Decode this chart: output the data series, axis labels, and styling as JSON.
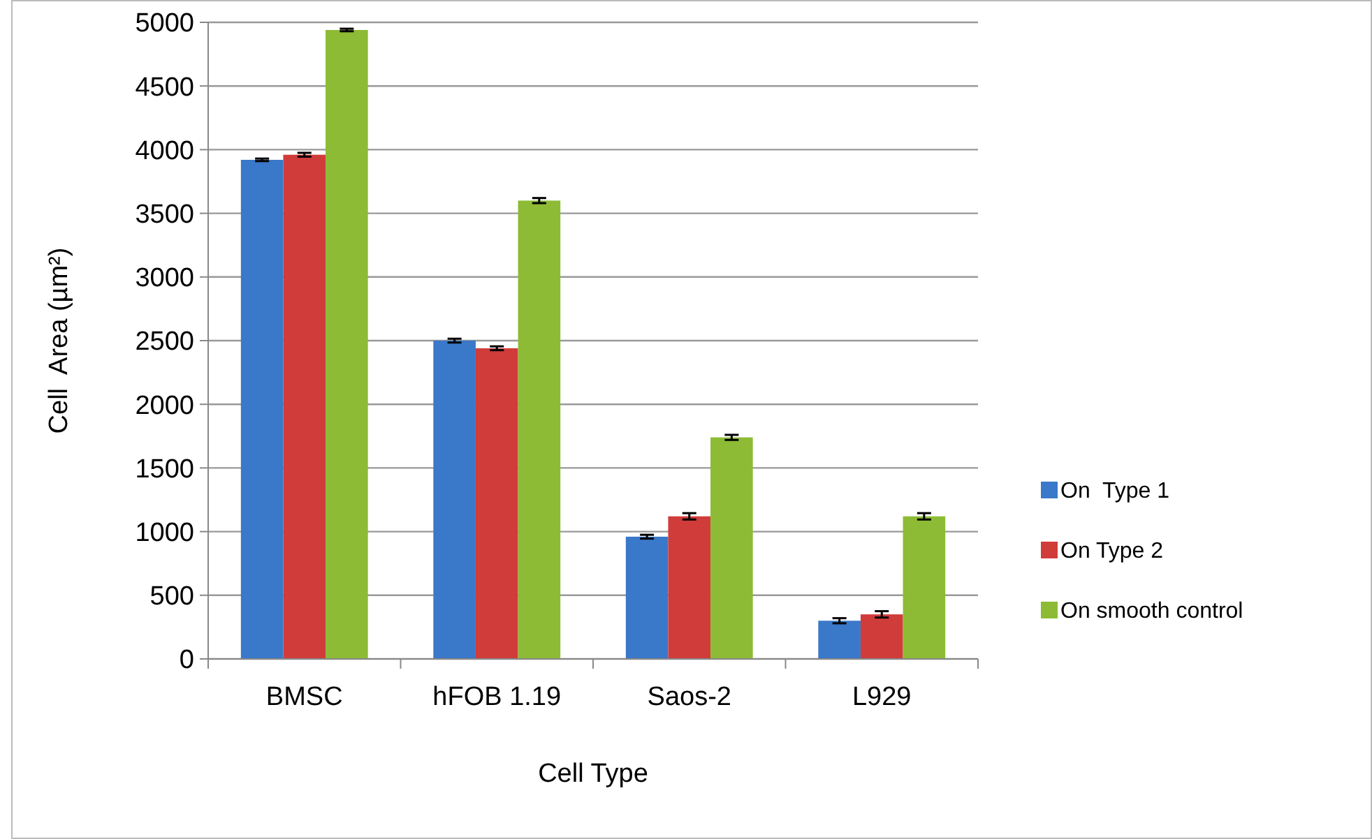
{
  "chart_data": {
    "type": "bar",
    "xlabel": "Cell Type",
    "ylabel": "Cell  Area (µm²)",
    "categories": [
      "BMSC",
      "hFOB 1.19",
      "Saos-2",
      "L929"
    ],
    "series": [
      {
        "name": "On  Type 1",
        "color": "#3a78c9",
        "values": [
          3920,
          2500,
          960,
          300
        ],
        "errors": [
          10,
          15,
          15,
          20
        ]
      },
      {
        "name": "On Type 2",
        "color": "#d03c3a",
        "values": [
          3960,
          2440,
          1120,
          350
        ],
        "errors": [
          15,
          15,
          25,
          25
        ]
      },
      {
        "name": "On smooth control",
        "color": "#8dbb35",
        "values": [
          4940,
          3600,
          1740,
          1120
        ],
        "errors": [
          10,
          20,
          20,
          25
        ]
      }
    ],
    "ylim": [
      0,
      5000
    ],
    "yticks": [
      0,
      500,
      1000,
      1500,
      2000,
      2500,
      3000,
      3500,
      4000,
      4500,
      5000
    ],
    "grid": "y",
    "legend": "right"
  }
}
